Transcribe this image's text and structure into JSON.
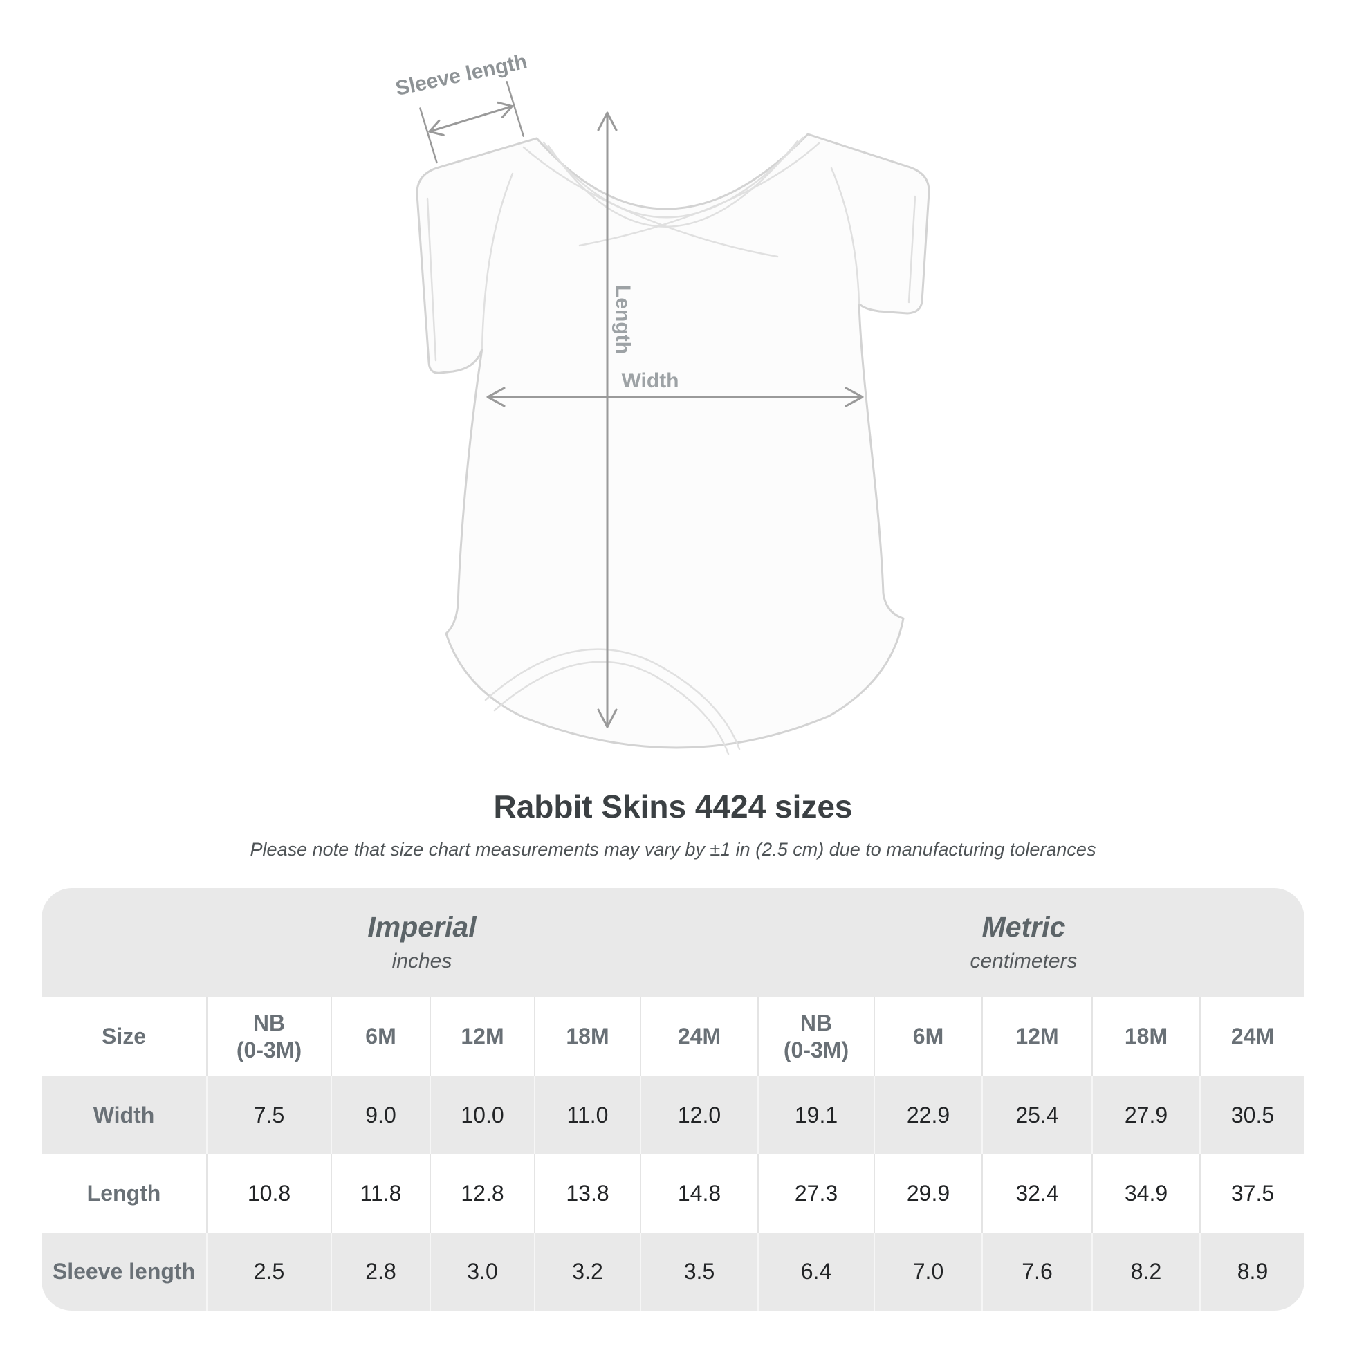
{
  "diagram": {
    "sleeve_length_label": "Sleeve length",
    "length_label": "Length",
    "width_label": "Width"
  },
  "heading": {
    "title": "Rabbit Skins 4424 sizes",
    "note": "Please note that size chart measurements may vary by ±1 in (2.5 cm) due to manufacturing tolerances"
  },
  "chart_data": {
    "type": "table",
    "title": "Rabbit Skins 4424 sizes",
    "size_column_header": "Size",
    "column_groups": [
      {
        "label": "Imperial",
        "unit_label": "inches",
        "sizes": [
          "NB\n(0-3M)",
          "6M",
          "12M",
          "18M",
          "24M"
        ]
      },
      {
        "label": "Metric",
        "unit_label": "centimeters",
        "sizes": [
          "NB\n(0-3M)",
          "6M",
          "12M",
          "18M",
          "24M"
        ]
      }
    ],
    "rows": [
      {
        "label": "Width",
        "imperial": [
          "7.5",
          "9.0",
          "10.0",
          "11.0",
          "12.0"
        ],
        "metric": [
          "19.1",
          "22.9",
          "25.4",
          "27.9",
          "30.5"
        ]
      },
      {
        "label": "Length",
        "imperial": [
          "10.8",
          "11.8",
          "12.8",
          "13.8",
          "14.8"
        ],
        "metric": [
          "27.3",
          "29.9",
          "32.4",
          "34.9",
          "37.5"
        ]
      },
      {
        "label": "Sleeve length",
        "imperial": [
          "2.5",
          "2.8",
          "3.0",
          "3.2",
          "3.5"
        ],
        "metric": [
          "6.4",
          "7.0",
          "7.6",
          "8.2",
          "8.9"
        ]
      }
    ]
  },
  "colors": {
    "table_band": "#e9e9e9",
    "header_text": "#697076",
    "value_text": "#222426",
    "title_text": "#3b4043",
    "measure_gray": "#9a9a9a"
  }
}
